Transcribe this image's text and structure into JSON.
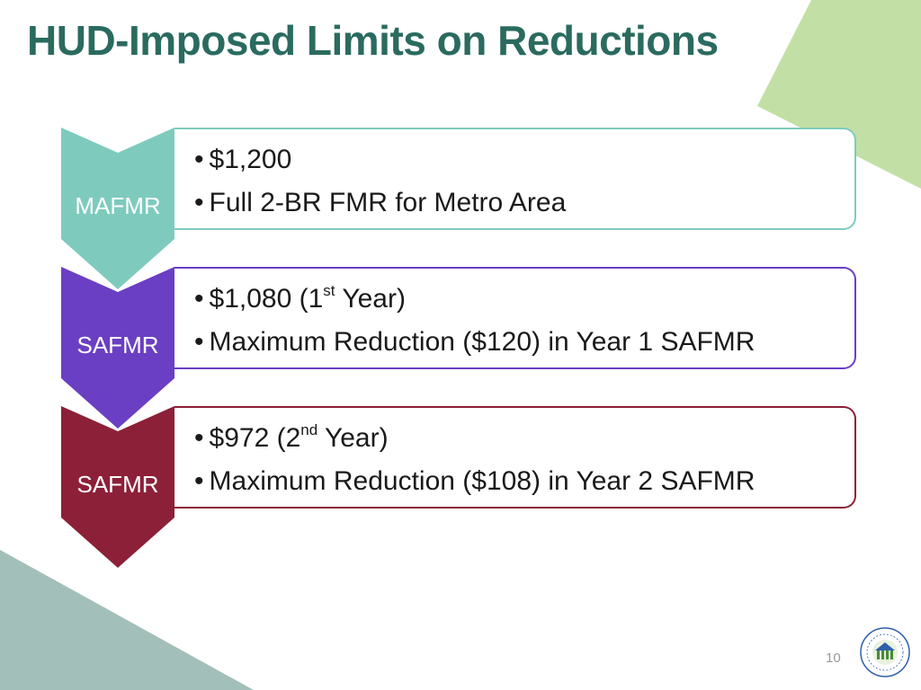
{
  "slide": {
    "title": "HUD-Imposed Limits on Reductions",
    "page_number": "10"
  },
  "rows": [
    {
      "label": "MAFMR",
      "color": "#7ecbbd",
      "bullets": [
        {
          "text": "$1,200"
        },
        {
          "text": "Full 2-BR FMR for Metro Area"
        }
      ]
    },
    {
      "label": "SAFMR",
      "color": "#6a3fc3",
      "bullets": [
        {
          "pre": "$1,080 (1",
          "sup": "st",
          "post": " Year)"
        },
        {
          "text": "Maximum Reduction ($120) in Year 1 SAFMR"
        }
      ]
    },
    {
      "label": "SAFMR",
      "color": "#8c2038",
      "bullets": [
        {
          "pre": "$972 (2",
          "sup": "nd",
          "post": " Year)"
        },
        {
          "text": "Maximum Reduction ($108) in Year 2 SAFMR"
        }
      ]
    }
  ],
  "decor": {
    "top_right_color": "#c2e0a6",
    "bottom_left_color": "#a3bfb9",
    "logo": "hud-seal-icon"
  }
}
